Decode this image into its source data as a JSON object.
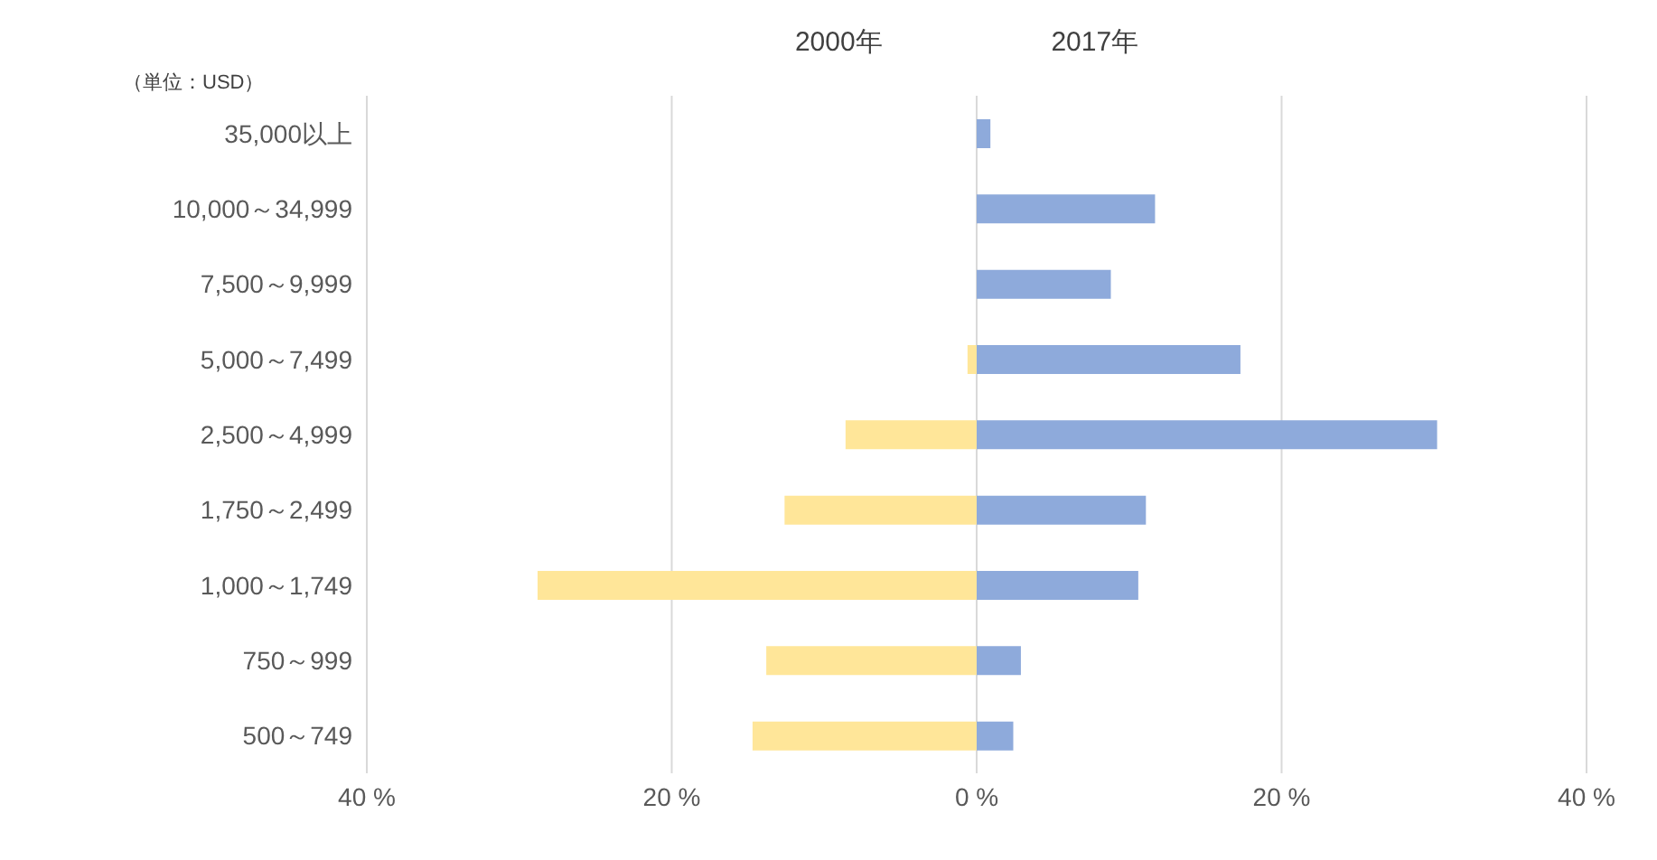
{
  "chart_data": {
    "type": "bar",
    "orientation": "horizontal",
    "stacked": true,
    "categories": [
      "35,000以上",
      "10,000～34,999",
      "7,500～9,999",
      "5,000～7,499",
      "2,500～4,999",
      "1,750～2,499",
      "1,000～1,749",
      "750～999",
      "500～749"
    ],
    "series": [
      {
        "name": "2000年",
        "color": "#ffe699",
        "values": [
          0,
          0,
          0,
          -0.6,
          -8.6,
          -12.6,
          -28.8,
          -13.8,
          -14.7
        ]
      },
      {
        "name": "2017年",
        "color": "#8eaadb",
        "values": [
          0.9,
          11.7,
          8.8,
          17.3,
          30.2,
          11.1,
          10.6,
          2.9,
          2.4
        ]
      }
    ],
    "xlim": [
      -40,
      40
    ],
    "xticks": [
      {
        "value": -40,
        "label": "40 %"
      },
      {
        "value": -20,
        "label": "20 %"
      },
      {
        "value": 0,
        "label": "0 %"
      },
      {
        "value": 20,
        "label": "20 %"
      },
      {
        "value": 40,
        "label": "40 %"
      }
    ],
    "grid": "x",
    "legend": false,
    "annotations": [
      "（単位：USD）"
    ]
  }
}
